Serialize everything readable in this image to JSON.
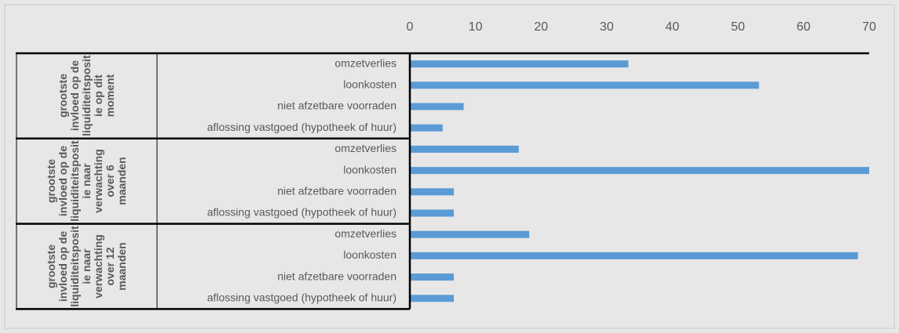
{
  "chart_data": {
    "type": "bar",
    "orientation": "horizontal",
    "color": "#5b9bd5",
    "xlim": [
      0,
      70
    ],
    "xticks": [
      0,
      10,
      20,
      30,
      40,
      50,
      60,
      70
    ],
    "groups": [
      {
        "label": "grootste invloed op de liquiditeitspositie op dit moment",
        "categories": [
          "omzetverlies",
          "loonkosten",
          "niet afzetbare voorraden",
          "aflossing vastgoed (hypotheek of huur)"
        ],
        "values": [
          33.3,
          53.2,
          8.2,
          5
        ]
      },
      {
        "label": "grootste invloed op de liquiditeitspositie naar verwachting over 6 maanden",
        "categories": [
          "omzetverlies",
          "loonkosten",
          "niet afzetbare voorraden",
          "aflossing vastgoed (hypotheek of huur)"
        ],
        "values": [
          16.6,
          70,
          6.7,
          6.7
        ]
      },
      {
        "label": "grootste invloed op de liquiditeitspositie naar verwachting over 12 maanden",
        "categories": [
          "omzetverlies",
          "loonkosten",
          "niet afzetbare voorraden",
          "aflossing vastgoed (hypotheek of huur)"
        ],
        "values": [
          18.2,
          68.3,
          6.7,
          6.7
        ]
      }
    ]
  }
}
